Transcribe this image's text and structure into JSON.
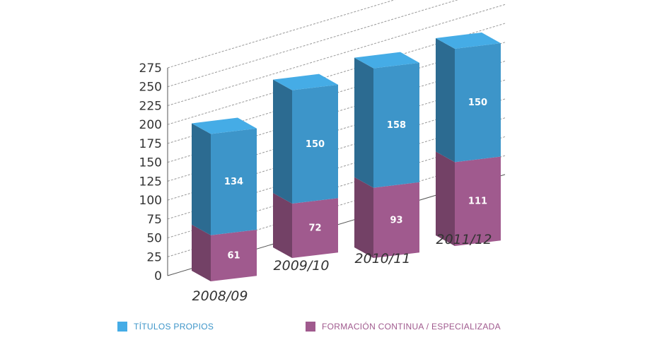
{
  "chart_data": {
    "type": "bar",
    "stacked": true,
    "style": "3d",
    "categories": [
      "2008/09",
      "2009/10",
      "2010/11",
      "2011/12"
    ],
    "series": [
      {
        "name": "FORMACIÓN CONTINUA / ESPECIALIZADA",
        "values": [
          61,
          72,
          93,
          111
        ],
        "color": "#a05a8e"
      },
      {
        "name": "TÍTULOS PROPIOS",
        "values": [
          134,
          150,
          158,
          150
        ],
        "color": "#3d95c9"
      }
    ],
    "yticks": [
      "0",
      "25",
      "50",
      "75",
      "100",
      "125",
      "150",
      "175",
      "200",
      "225",
      "250",
      "275"
    ],
    "ylim": [
      0,
      275
    ],
    "grid": true,
    "legend_position": "bottom"
  },
  "legend": [
    {
      "label": "TÍTULOS PROPIOS",
      "color": "#45ace6",
      "text_color": "#3d95c9"
    },
    {
      "label": "FORMACIÓN CONTINUA / ESPECIALIZADA",
      "color": "#a05a8e",
      "text_color": "#a05a8e"
    }
  ]
}
